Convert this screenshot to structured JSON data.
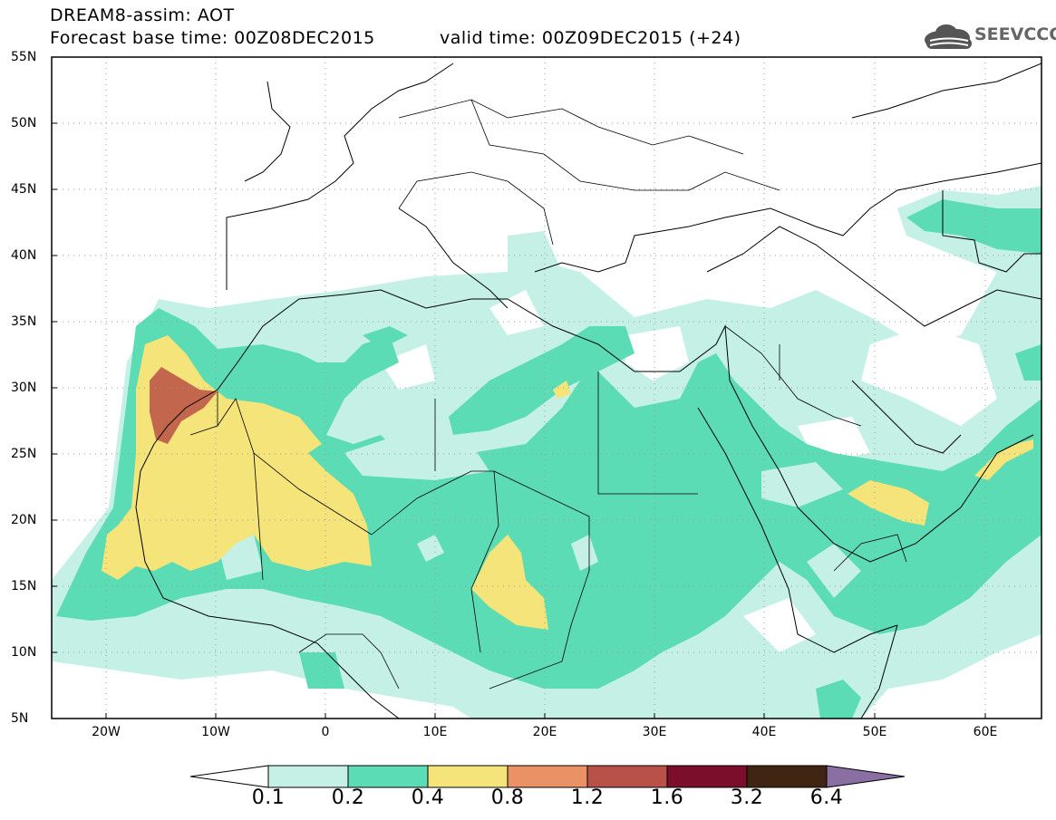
{
  "header": {
    "title": "DREAM8-assim: AOT",
    "base_time": "Forecast base time: 00Z08DEC2015",
    "valid_time": "valid time: 00Z09DEC2015 (+24)",
    "logo_text": "SEEVCCC"
  },
  "map": {
    "projection": "lat-lon",
    "lon_range": [
      -25,
      65
    ],
    "lat_range": [
      5,
      55
    ],
    "lat_labels": [
      "55N",
      "50N",
      "45N",
      "40N",
      "35N",
      "30N",
      "25N",
      "20N",
      "15N",
      "10N",
      "5N"
    ],
    "lon_labels": [
      "20W",
      "10W",
      "0",
      "10E",
      "20E",
      "30E",
      "40E",
      "50E",
      "60E"
    ],
    "background_color": "#ffffff",
    "grid": "dotted"
  },
  "legend": {
    "boundaries": [
      "0.1",
      "0.2",
      "0.4",
      "0.8",
      "1.2",
      "1.6",
      "3.2",
      "6.4"
    ],
    "colors": [
      "#ffffff",
      "#c5f0e6",
      "#5cdcb4",
      "#f5e479",
      "#eb9166",
      "#b85147",
      "#7b0f2b",
      "#3f2512",
      "#8a6fa3"
    ]
  }
}
